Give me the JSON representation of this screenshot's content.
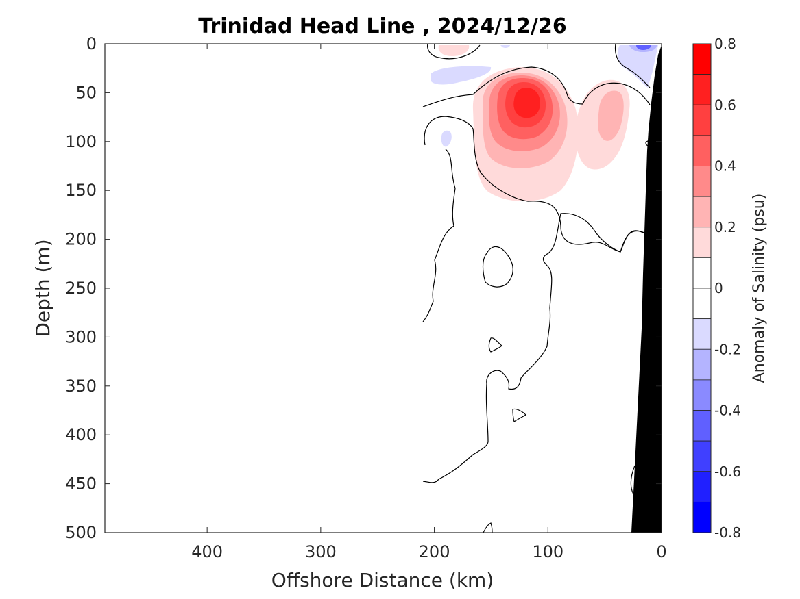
{
  "chart_data": {
    "type": "heatmap",
    "title": "Trinidad Head Line , 2024/12/26",
    "xlabel": "Offshore Distance (km)",
    "ylabel": "Depth (m)",
    "xlim": [
      490,
      0
    ],
    "ylim": [
      0,
      500
    ],
    "x_direction": "reversed",
    "y_direction": "reversed",
    "x_ticks": [
      400,
      300,
      200,
      100,
      0
    ],
    "y_ticks": [
      0,
      50,
      100,
      150,
      200,
      250,
      300,
      350,
      400,
      450,
      500
    ],
    "grid": false,
    "colorbar": {
      "label": "Anomaly of Salinity (psu)",
      "range": [
        -0.8,
        0.8
      ],
      "ticks": [
        0.8,
        0.6,
        0.4,
        0.2,
        0,
        -0.2,
        -0.4,
        -0.6,
        -0.8
      ],
      "levels": [
        {
          "from": 0.7,
          "to": 0.8,
          "color": "#ff0000"
        },
        {
          "from": 0.6,
          "to": 0.7,
          "color": "#ff2020"
        },
        {
          "from": 0.5,
          "to": 0.6,
          "color": "#ff4040"
        },
        {
          "from": 0.4,
          "to": 0.5,
          "color": "#ff6060"
        },
        {
          "from": 0.3,
          "to": 0.4,
          "color": "#ff8a8a"
        },
        {
          "from": 0.2,
          "to": 0.3,
          "color": "#ffb4b4"
        },
        {
          "from": 0.1,
          "to": 0.2,
          "color": "#ffdada"
        },
        {
          "from": 0.0,
          "to": 0.1,
          "color": "#ffffff"
        },
        {
          "from": -0.1,
          "to": 0.0,
          "color": "#ffffff"
        },
        {
          "from": -0.2,
          "to": -0.1,
          "color": "#dadaff"
        },
        {
          "from": -0.3,
          "to": -0.2,
          "color": "#b4b4ff"
        },
        {
          "from": -0.4,
          "to": -0.3,
          "color": "#8a8aff"
        },
        {
          "from": -0.5,
          "to": -0.4,
          "color": "#6060ff"
        },
        {
          "from": -0.6,
          "to": -0.5,
          "color": "#4040ff"
        },
        {
          "from": -0.7,
          "to": -0.6,
          "color": "#2020ff"
        },
        {
          "from": -0.8,
          "to": -0.7,
          "color": "#0000ff"
        }
      ]
    },
    "features": [
      {
        "kind": "positive-anomaly-core",
        "x_km": 118,
        "depth_m": 60,
        "value": 0.65
      },
      {
        "kind": "positive-anomaly-secondary",
        "x_km": 45,
        "depth_m": 70,
        "value": 0.3
      },
      {
        "kind": "negative-anomaly-surface",
        "x_km": 15,
        "depth_m": 5,
        "value": -0.4
      }
    ],
    "seafloor_color": "#000000"
  }
}
